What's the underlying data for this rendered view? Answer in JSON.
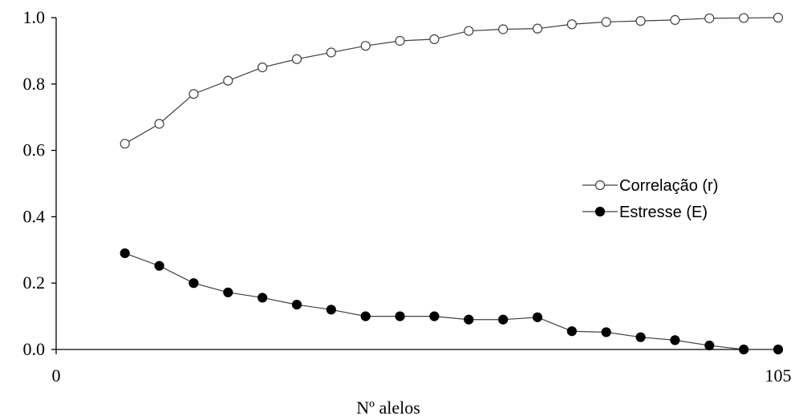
{
  "chart_data": {
    "type": "line",
    "xlabel": "Nº alelos",
    "ylabel": "",
    "xlim": [
      0,
      105
    ],
    "ylim": [
      0,
      1.0
    ],
    "x_ticks": [
      "0",
      "105"
    ],
    "y_ticks": [
      "0.0",
      "0.2",
      "0.4",
      "0.6",
      "0.8",
      "1.0"
    ],
    "grid": false,
    "legend_position": "right",
    "x": [
      10,
      15,
      20,
      25,
      30,
      35,
      40,
      45,
      50,
      55,
      60,
      65,
      70,
      75,
      80,
      85,
      90,
      95,
      100,
      105
    ],
    "series": [
      {
        "name": "Correlação (r)",
        "marker": "open-circle",
        "color": "#404040",
        "values": [
          0.62,
          0.68,
          0.77,
          0.81,
          0.85,
          0.875,
          0.895,
          0.915,
          0.93,
          0.935,
          0.96,
          0.965,
          0.967,
          0.98,
          0.987,
          0.99,
          0.993,
          0.998,
          0.999,
          1.0
        ]
      },
      {
        "name": "Estresse (E)",
        "marker": "filled-circle",
        "color": "#000000",
        "values": [
          0.29,
          0.252,
          0.2,
          0.172,
          0.156,
          0.135,
          0.12,
          0.1,
          0.1,
          0.1,
          0.09,
          0.09,
          0.097,
          0.055,
          0.052,
          0.037,
          0.028,
          0.012,
          0.0,
          0.0
        ]
      }
    ]
  }
}
